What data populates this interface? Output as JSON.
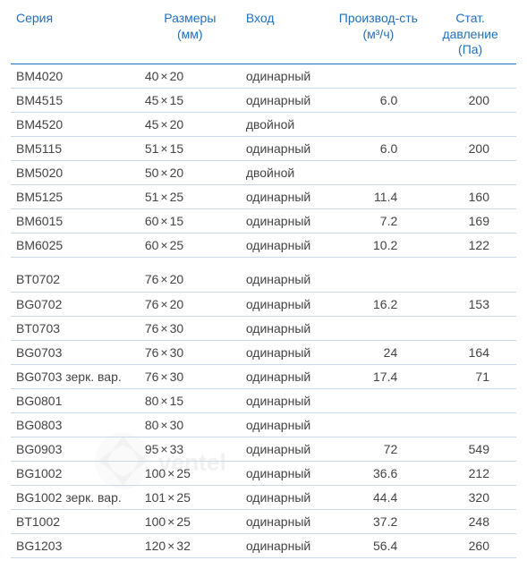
{
  "header": {
    "series": "Серия",
    "size_line1": "Размеры",
    "size_line2": "(мм)",
    "inlet": "Вход",
    "flow_line1": "Производ-сть",
    "flow_line2": "(м³/ч)",
    "pressure_line1": "Стат. давление",
    "pressure_line2": "(Па)"
  },
  "colors": {
    "header_text": "#2070c0",
    "header_rule": "#2070c0",
    "row_rule": "#c8d8e8",
    "body_text": "#444444",
    "background": "#ffffff"
  },
  "typography": {
    "font_family": "Arial",
    "font_size_pt": 11
  },
  "dim_separator": "×",
  "rows": [
    {
      "series": "BM4020",
      "w": "40",
      "h": "20",
      "inlet": "одинарный",
      "flow": "",
      "pressure": ""
    },
    {
      "series": "BM4515",
      "w": "45",
      "h": "15",
      "inlet": "одинарный",
      "flow": "6.0",
      "pressure": "200"
    },
    {
      "series": "BM4520",
      "w": "45",
      "h": "20",
      "inlet": "двойной",
      "flow": "",
      "pressure": ""
    },
    {
      "series": "BM5115",
      "w": "51",
      "h": "15",
      "inlet": "одинарный",
      "flow": "6.0",
      "pressure": "200"
    },
    {
      "series": "BM5020",
      "w": "50",
      "h": "20",
      "inlet": "двойной",
      "flow": "",
      "pressure": ""
    },
    {
      "series": "BM5125",
      "w": "51",
      "h": "25",
      "inlet": "одинарный",
      "flow": "11.4",
      "pressure": "160"
    },
    {
      "series": "BM6015",
      "w": "60",
      "h": "15",
      "inlet": "одинарный",
      "flow": "7.2",
      "pressure": "169"
    },
    {
      "series": "BM6025",
      "w": "60",
      "h": "25",
      "inlet": "одинарный",
      "flow": "10.2",
      "pressure": "122"
    },
    {
      "gap": true
    },
    {
      "series": "BT0702",
      "w": "76",
      "h": "20",
      "inlet": "одинарный",
      "flow": "",
      "pressure": ""
    },
    {
      "series": "BG0702",
      "w": "76",
      "h": "20",
      "inlet": "одинарный",
      "flow": "16.2",
      "pressure": "153"
    },
    {
      "series": "BT0703",
      "w": "76",
      "h": "30",
      "inlet": "одинарный",
      "flow": "",
      "pressure": ""
    },
    {
      "series": "BG0703",
      "w": "76",
      "h": "30",
      "inlet": "одинарный",
      "flow": "24",
      "pressure": "164"
    },
    {
      "series": "BG0703 зерк. вар.",
      "w": "76",
      "h": "30",
      "inlet": "одинарный",
      "flow": "17.4",
      "pressure": "71"
    },
    {
      "series": "BG0801",
      "w": "80",
      "h": "15",
      "inlet": "одинарный",
      "flow": "",
      "pressure": ""
    },
    {
      "series": "BG0803",
      "w": "80",
      "h": "30",
      "inlet": "одинарный",
      "flow": "",
      "pressure": ""
    },
    {
      "series": "BG0903",
      "w": "95",
      "h": "33",
      "inlet": "одинарный",
      "flow": "72",
      "pressure": "549"
    },
    {
      "series": "BG1002",
      "w": "100",
      "h": "25",
      "inlet": "одинарный",
      "flow": "36.6",
      "pressure": "212"
    },
    {
      "series": "BG1002 зерк. вар.",
      "w": "101",
      "h": "25",
      "inlet": "одинарный",
      "flow": "44.4",
      "pressure": "320"
    },
    {
      "series": "BT1002",
      "w": "100",
      "h": "25",
      "inlet": "одинарный",
      "flow": "37.2",
      "pressure": "248"
    },
    {
      "series": "BG1203",
      "w": "120",
      "h": "32",
      "inlet": "одинарный",
      "flow": "56.4",
      "pressure": "260"
    }
  ]
}
